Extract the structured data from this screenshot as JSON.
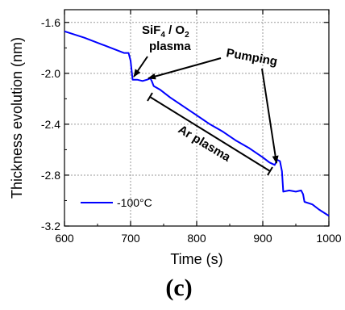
{
  "chart_data": {
    "type": "line",
    "xlabel": "Time (s)",
    "ylabel": "Thickness evolution (nm)",
    "xlim": [
      600,
      1000
    ],
    "ylim": [
      -3.2,
      -1.5
    ],
    "x_ticks": [
      600,
      700,
      800,
      900,
      1000
    ],
    "y_ticks": [
      -1.6,
      -2.0,
      -2.4,
      -2.8,
      -3.2
    ],
    "x_tick_labels": [
      "600",
      "700",
      "800",
      "900",
      "1000"
    ],
    "y_tick_labels": [
      "-1.6",
      "-2.0",
      "-2.4",
      "-2.8",
      "-3.2"
    ],
    "grid": true,
    "legend_position": "bottom-left",
    "series": [
      {
        "name": "-100°C",
        "color": "#0000ff",
        "points": [
          [
            600,
            -1.67
          ],
          [
            630,
            -1.72
          ],
          [
            660,
            -1.78
          ],
          [
            690,
            -1.84
          ],
          [
            697,
            -1.84
          ],
          [
            700,
            -1.9
          ],
          [
            703,
            -2.05
          ],
          [
            710,
            -2.05
          ],
          [
            718,
            -2.06
          ],
          [
            725,
            -2.05
          ],
          [
            730,
            -2.04
          ],
          [
            732,
            -2.06
          ],
          [
            735,
            -2.1
          ],
          [
            745,
            -2.13
          ],
          [
            760,
            -2.19
          ],
          [
            780,
            -2.26
          ],
          [
            800,
            -2.33
          ],
          [
            820,
            -2.4
          ],
          [
            840,
            -2.46
          ],
          [
            860,
            -2.53
          ],
          [
            880,
            -2.59
          ],
          [
            900,
            -2.66
          ],
          [
            910,
            -2.7
          ],
          [
            918,
            -2.72
          ],
          [
            922,
            -2.68
          ],
          [
            926,
            -2.69
          ],
          [
            929,
            -2.77
          ],
          [
            931,
            -2.93
          ],
          [
            940,
            -2.92
          ],
          [
            950,
            -2.93
          ],
          [
            958,
            -2.92
          ],
          [
            961,
            -2.95
          ],
          [
            963,
            -3.01
          ],
          [
            975,
            -3.03
          ],
          [
            985,
            -3.07
          ],
          [
            1000,
            -3.12
          ]
        ]
      }
    ],
    "annotations": {
      "sif4_line1_prefix": "SiF",
      "sif4_sub1": "4",
      "sif4_mid": " / O",
      "sif4_sub2": "2",
      "sif4_line2": "plasma",
      "pumping": "Pumping",
      "ar_plasma": "Ar plasma"
    }
  },
  "panel_label": "(c)"
}
